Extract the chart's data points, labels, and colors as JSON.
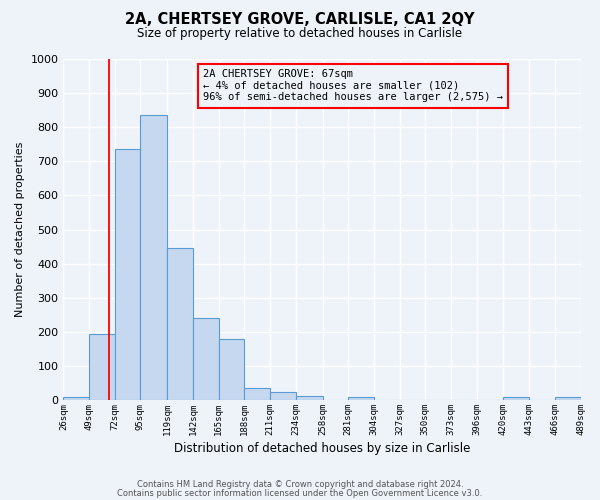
{
  "title1": "2A, CHERTSEY GROVE, CARLISLE, CA1 2QY",
  "title2": "Size of property relative to detached houses in Carlisle",
  "xlabel": "Distribution of detached houses by size in Carlisle",
  "ylabel": "Number of detached properties",
  "bin_edges": [
    26,
    49,
    72,
    95,
    119,
    142,
    165,
    188,
    211,
    234,
    258,
    281,
    304,
    327,
    350,
    373,
    396,
    420,
    443,
    466,
    489
  ],
  "bar_heights": [
    10,
    195,
    735,
    835,
    445,
    240,
    178,
    35,
    25,
    12,
    0,
    8,
    0,
    0,
    0,
    0,
    0,
    8,
    0,
    10
  ],
  "bar_color": "#c5d8f0",
  "bar_edge_color": "#5b9bd5",
  "red_line_x": 67,
  "ylim": [
    0,
    1000
  ],
  "annotation_text": "2A CHERTSEY GROVE: 67sqm\n← 4% of detached houses are smaller (102)\n96% of semi-detached houses are larger (2,575) →",
  "footer1": "Contains HM Land Registry data © Crown copyright and database right 2024.",
  "footer2": "Contains public sector information licensed under the Open Government Licence v3.0.",
  "bg_color": "#eef2f9",
  "grid_color": "#ffffff",
  "tick_labels": [
    "26sqm",
    "49sqm",
    "72sqm",
    "95sqm",
    "119sqm",
    "142sqm",
    "165sqm",
    "188sqm",
    "211sqm",
    "234sqm",
    "258sqm",
    "281sqm",
    "304sqm",
    "327sqm",
    "350sqm",
    "373sqm",
    "396sqm",
    "420sqm",
    "443sqm",
    "466sqm",
    "489sqm"
  ],
  "yticks": [
    0,
    100,
    200,
    300,
    400,
    500,
    600,
    700,
    800,
    900,
    1000
  ]
}
